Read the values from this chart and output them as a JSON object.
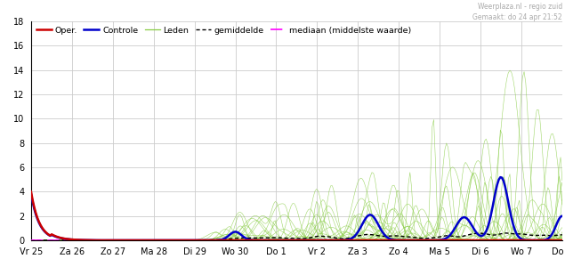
{
  "watermark_line1": "Weerplaza.nl - regio zuid",
  "watermark_line2": "Gemaakt: do 24 apr 21:52",
  "ylim": [
    0,
    18
  ],
  "yticks": [
    0,
    2,
    4,
    6,
    8,
    10,
    12,
    14,
    16,
    18
  ],
  "xtick_labels": [
    "Vr 25",
    "Za 26",
    "Zo 27",
    "Ma 28",
    "Di 29",
    "Wo 30",
    "Do 1",
    "Vr 2",
    "Za 3",
    "Zo 4",
    "Ma 5",
    "Di 6",
    "Wo 7",
    "Do 8"
  ],
  "n_ticks": 14,
  "bg_color": "#ffffff",
  "grid_color": "#cccccc",
  "oper_color": "#cc0000",
  "controle_color": "#0000cc",
  "leden_color": "#88cc44",
  "gemiddelde_color": "#000000",
  "mediaan_color": "#ff00ff",
  "legend_labels": [
    "Oper.",
    "Controle",
    "Leden",
    "gemiddelde",
    "mediaan (middelste waarde)"
  ],
  "n_steps": 336,
  "n_leden": 50,
  "seed": 7
}
